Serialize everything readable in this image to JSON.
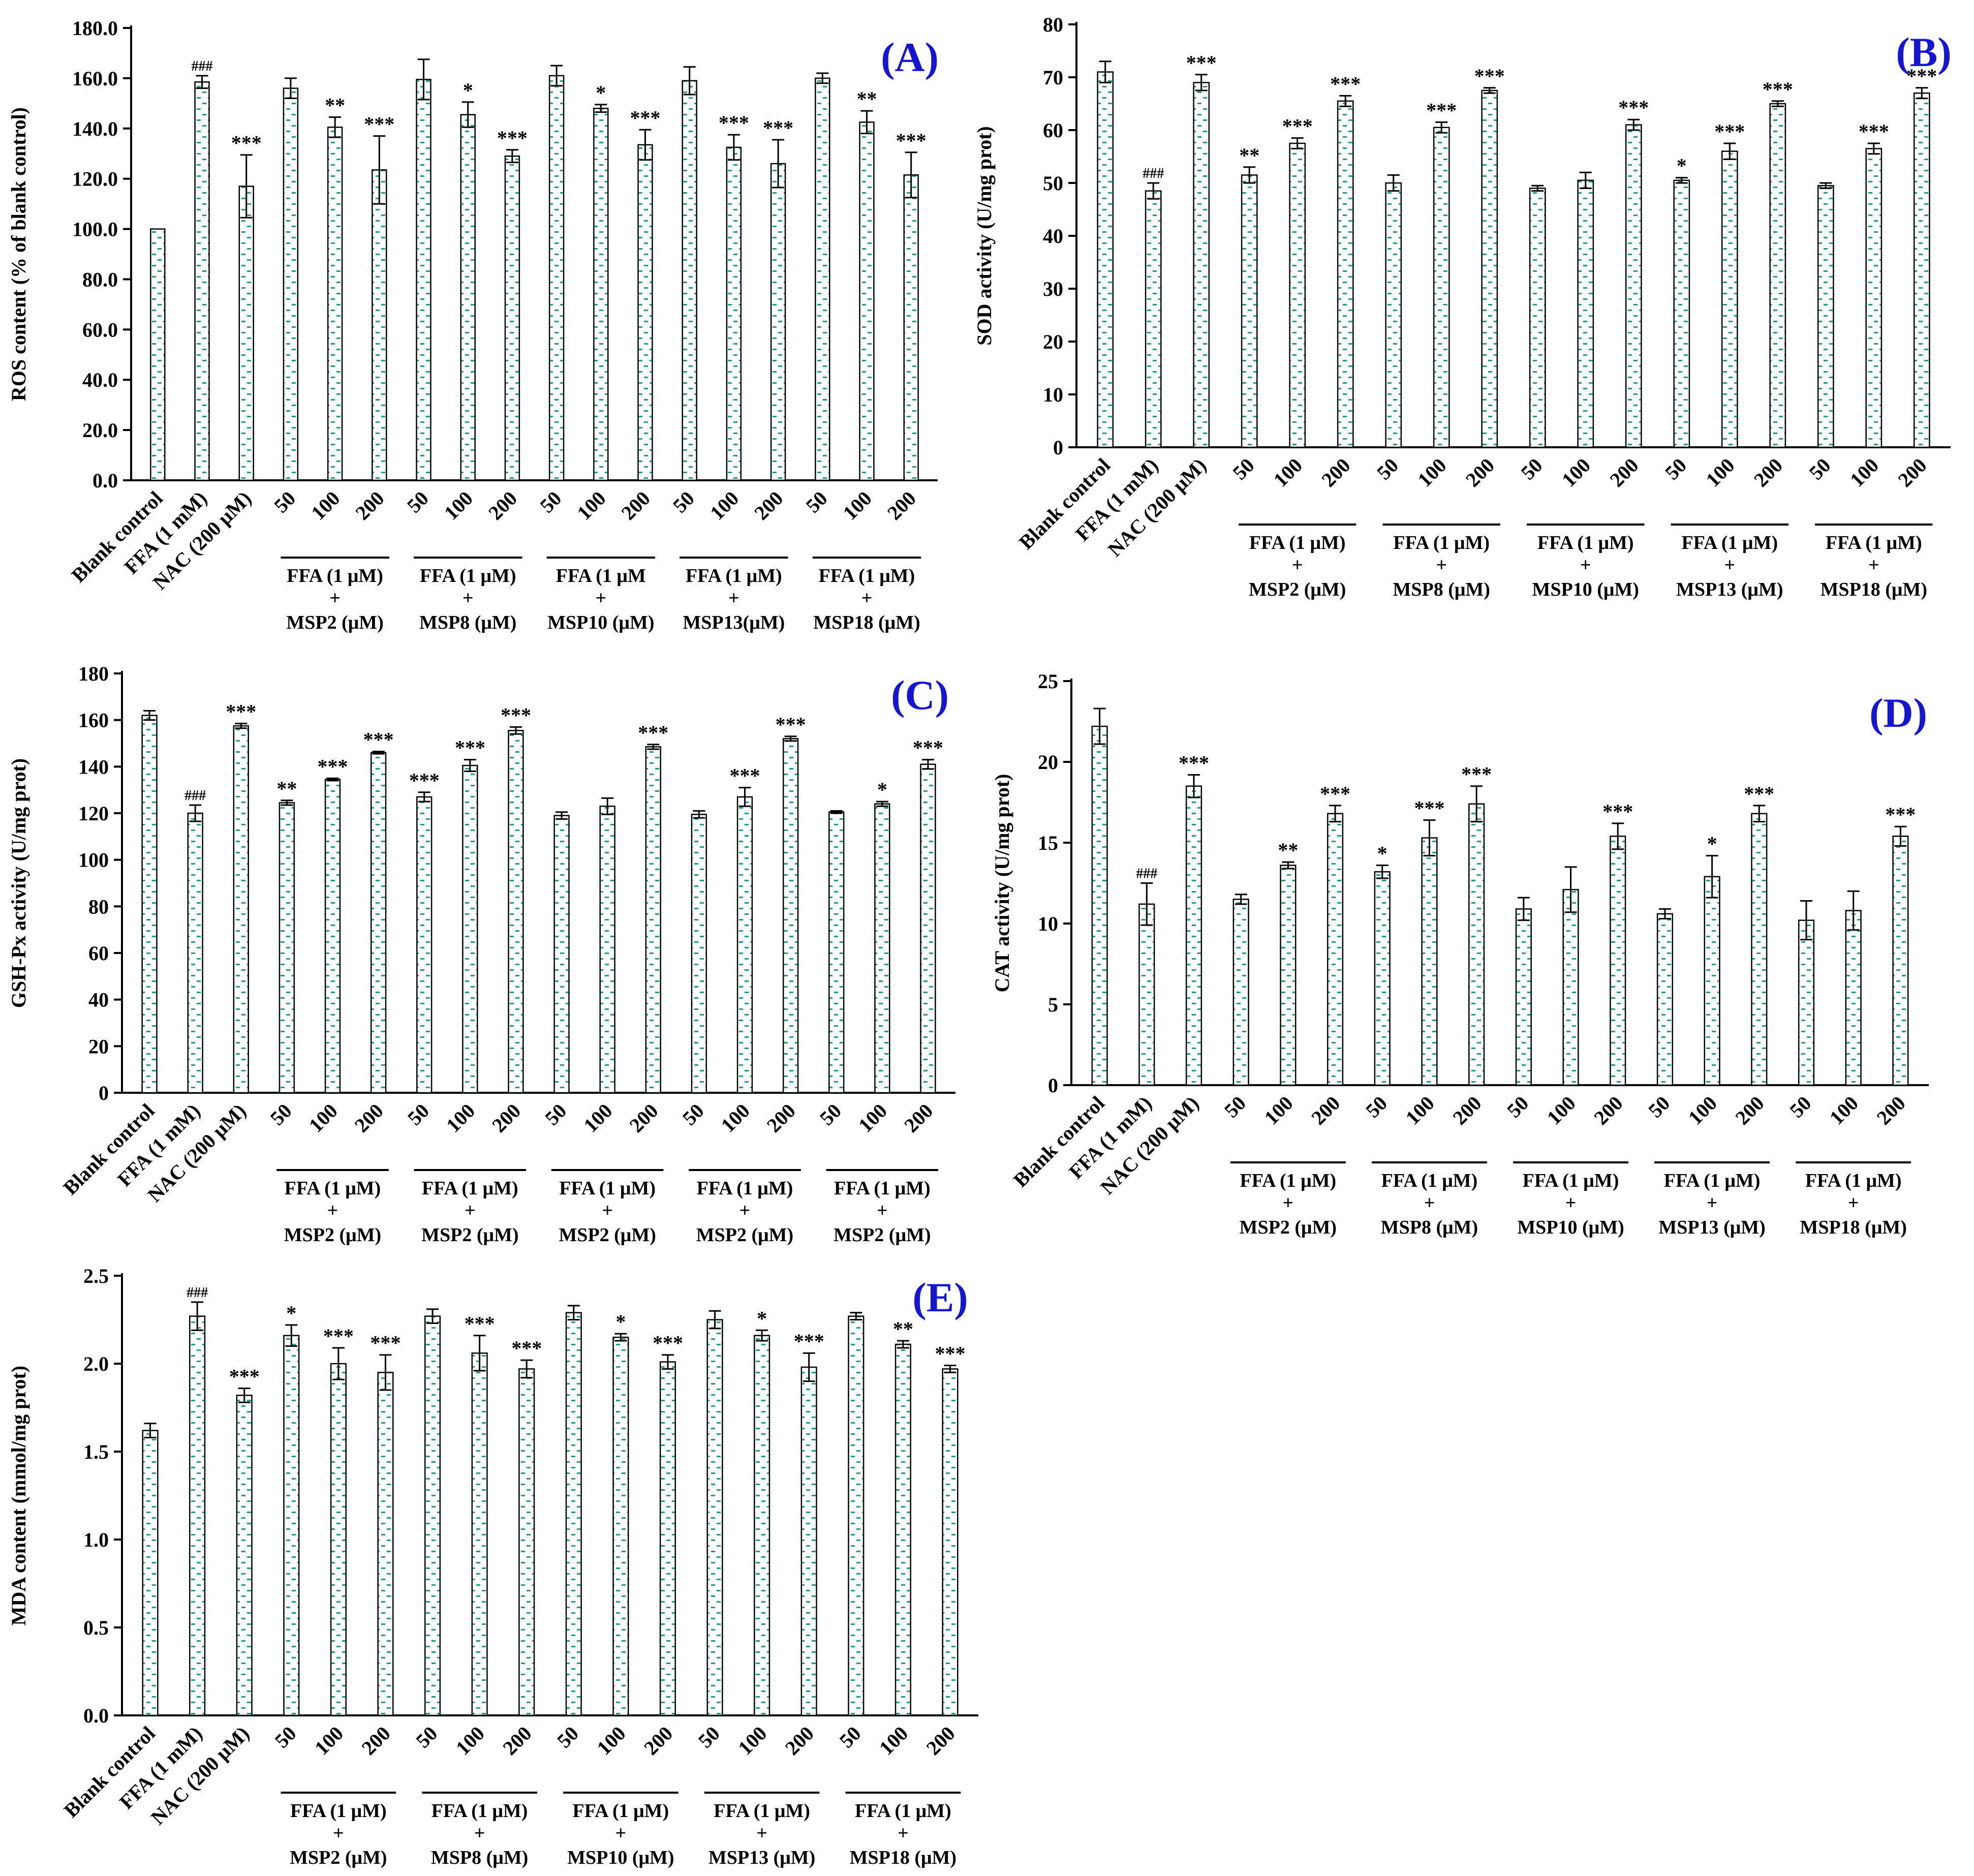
{
  "figure": {
    "colors": {
      "bar_fill": "#ffffff",
      "bar_pattern": "#1e9e78",
      "axis": "#000000",
      "panel_label": "#1515d6"
    }
  },
  "chart_data": [
    {
      "panel_label": "(A)",
      "type": "bar",
      "ylabel": "ROS content (% of blank control)",
      "ylim": [
        0,
        180
      ],
      "yticks": [
        "0.0",
        "20.0",
        "40.0",
        "60.0",
        "80.0",
        "100.0",
        "120.0",
        "140.0",
        "160.0",
        "180.0"
      ],
      "categories": [
        "Blank control",
        "FFA (1 mM)",
        "NAC (200 μM)",
        "50",
        "100",
        "200",
        "50",
        "100",
        "200",
        "50",
        "100",
        "200",
        "50",
        "100",
        "200",
        "50",
        "100",
        "200"
      ],
      "values": [
        100,
        158.5,
        117,
        156,
        140.5,
        123.5,
        159.5,
        145.5,
        129,
        161,
        148,
        133.5,
        159,
        132.5,
        126,
        160,
        142.5,
        121.5
      ],
      "errors": [
        0,
        2.5,
        12.5,
        4,
        4,
        13.5,
        8,
        5,
        2.5,
        4,
        1.5,
        6,
        5.5,
        5,
        9.5,
        2,
        4.5,
        9
      ],
      "significance": [
        "",
        "###",
        "***",
        "",
        "**",
        "***",
        "",
        "*",
        "***",
        "",
        "*",
        "***",
        "",
        "***",
        "***",
        "",
        "**",
        "***"
      ],
      "group_line1": "FFA (1 μM)",
      "group_line2": "+",
      "group_labels": [
        "MSP2 (μM)",
        "MSP8 (μM)",
        "MSP10 (μM)",
        "MSP13(μM)",
        "MSP18 (μM)"
      ],
      "group_line1_list": [
        "FFA (1 μM)",
        "FFA (1 μM)",
        "FFA (1 μM",
        "FFA (1 μM)",
        "FFA (1 μM)"
      ]
    },
    {
      "panel_label": "(B)",
      "type": "bar",
      "ylabel": "SOD activity (U/mg prot)",
      "ylim": [
        0,
        80
      ],
      "yticks": [
        "0",
        "10",
        "20",
        "30",
        "40",
        "50",
        "60",
        "70",
        "80"
      ],
      "categories": [
        "Blank control",
        "FFA (1 mM)",
        "NAC (200 μM)",
        "50",
        "100",
        "200",
        "50",
        "100",
        "200",
        "50",
        "100",
        "200",
        "50",
        "100",
        "200",
        "50",
        "100",
        "200"
      ],
      "values": [
        71,
        48.5,
        69,
        51.5,
        57.5,
        65.5,
        50,
        60.5,
        67.5,
        49,
        50.5,
        61,
        50.5,
        56,
        65,
        49.5,
        56.5,
        67
      ],
      "errors": [
        2,
        1.5,
        1.5,
        1.5,
        1,
        1,
        1.5,
        1,
        0.5,
        0.5,
        1.5,
        1,
        0.5,
        1.5,
        0.5,
        0.5,
        1,
        1
      ],
      "significance": [
        "",
        "###",
        "***",
        "**",
        "***",
        "***",
        "",
        "***",
        "***",
        "",
        "",
        "***",
        "*",
        "***",
        "***",
        "",
        "***",
        "***"
      ],
      "group_line1_list": [
        "FFA (1 μM)",
        "FFA (1 μM)",
        "FFA (1 μM)",
        "FFA (1 μM)",
        "FFA (1 μM)"
      ],
      "group_line2": "+",
      "group_labels": [
        "MSP2 (μM)",
        "MSP8 (μM)",
        "MSP10 (μM)",
        "MSP13 (μM)",
        "MSP18 (μM)"
      ]
    },
    {
      "panel_label": "(C)",
      "type": "bar",
      "ylabel": "GSH-Px activity (U/mg prot)",
      "ylim": [
        0,
        180
      ],
      "yticks": [
        "0",
        "20",
        "40",
        "60",
        "80",
        "100",
        "120",
        "140",
        "160",
        "180"
      ],
      "categories": [
        "Blank control",
        "FFA (1 mM)",
        "NAC (200 μM)",
        "50",
        "100",
        "200",
        "50",
        "100",
        "200",
        "50",
        "100",
        "200",
        "50",
        "100",
        "200",
        "50",
        "100",
        "200"
      ],
      "values": [
        162,
        120,
        157.5,
        124.5,
        134.5,
        146,
        127,
        140.5,
        155.5,
        119,
        123,
        148.5,
        119.5,
        127,
        152,
        120.5,
        124,
        141
      ],
      "errors": [
        2,
        3.5,
        1,
        1,
        0.5,
        0.5,
        2,
        2.5,
        1.5,
        1.5,
        3.5,
        1,
        1.5,
        4,
        1,
        0.5,
        1,
        2
      ],
      "significance": [
        "",
        "###",
        "***",
        "**",
        "***",
        "***",
        "***",
        "***",
        "***",
        "",
        "",
        "***",
        "",
        "***",
        "***",
        "",
        "*",
        "***"
      ],
      "group_line1_list": [
        "FFA (1 μM)",
        "FFA (1 μM)",
        "FFA (1 μM)",
        "FFA (1 μM)",
        "FFA (1 μM)"
      ],
      "group_line2": "+",
      "group_labels": [
        "MSP2 (μM)",
        "MSP2 (μM)",
        "MSP2 (μM)",
        "MSP2 (μM)",
        "MSP2 (μM)"
      ]
    },
    {
      "panel_label": "(D)",
      "type": "bar",
      "ylabel": "CAT activity (U/mg prot)",
      "ylim": [
        0,
        25
      ],
      "yticks": [
        "0",
        "5",
        "10",
        "15",
        "20",
        "25"
      ],
      "categories": [
        "Blank control",
        "FFA (1 mM)",
        "NAC (200 μM)",
        "50",
        "100",
        "200",
        "50",
        "100",
        "200",
        "50",
        "100",
        "200",
        "50",
        "100",
        "200",
        "50",
        "100",
        "200"
      ],
      "values": [
        22.2,
        11.2,
        18.5,
        11.5,
        13.6,
        16.8,
        13.2,
        15.3,
        17.4,
        10.9,
        12.1,
        15.4,
        10.6,
        12.9,
        16.8,
        10.2,
        10.8,
        15.4
      ],
      "errors": [
        1.1,
        1.3,
        0.7,
        0.3,
        0.2,
        0.5,
        0.4,
        1.1,
        1.1,
        0.7,
        1.4,
        0.8,
        0.3,
        1.3,
        0.5,
        1.2,
        1.2,
        0.6
      ],
      "significance": [
        "",
        "###",
        "***",
        "",
        "**",
        "***",
        "*",
        "***",
        "***",
        "",
        "",
        "***",
        "",
        "*",
        "***",
        "",
        "",
        "***"
      ],
      "group_line1_list": [
        "FFA (1 μM)",
        "FFA (1 μM)",
        "FFA (1 μM)",
        "FFA (1 μM)",
        "FFA (1 μM)"
      ],
      "group_line2": "+",
      "group_labels": [
        "MSP2 (μM)",
        "MSP8 (μM)",
        "MSP10 (μM)",
        "MSP13 (μM)",
        "MSP18 (μM)"
      ]
    },
    {
      "panel_label": "(E)",
      "type": "bar",
      "ylabel": "MDA content (mmol/mg prot)",
      "ylim": [
        0,
        2.5
      ],
      "yticks": [
        "0.0",
        "0.5",
        "1.0",
        "1.5",
        "2.0",
        "2.5"
      ],
      "categories": [
        "Blank control",
        "FFA (1 mM)",
        "NAC (200 μM)",
        "50",
        "100",
        "200",
        "50",
        "100",
        "200",
        "50",
        "100",
        "200",
        "50",
        "100",
        "200",
        "50",
        "100",
        "200"
      ],
      "values": [
        1.62,
        2.27,
        1.82,
        2.16,
        2.0,
        1.95,
        2.27,
        2.06,
        1.97,
        2.29,
        2.15,
        2.01,
        2.25,
        2.16,
        1.98,
        2.27,
        2.11,
        1.97
      ],
      "errors": [
        0.04,
        0.08,
        0.04,
        0.06,
        0.09,
        0.1,
        0.04,
        0.1,
        0.05,
        0.04,
        0.02,
        0.04,
        0.05,
        0.03,
        0.08,
        0.02,
        0.02,
        0.02
      ],
      "significance": [
        "",
        "###",
        "***",
        "*",
        "***",
        "***",
        "",
        "***",
        "***",
        "",
        "*",
        "***",
        "",
        "*",
        "***",
        "",
        "**",
        "***"
      ],
      "group_line1_list": [
        "FFA (1 μM)",
        "FFA (1 μM)",
        "FFA (1 μM)",
        "FFA (1 μM)",
        "FFA (1 μM)"
      ],
      "group_line2": "+",
      "group_labels": [
        "MSP2 (μM)",
        "MSP8 (μM)",
        "MSP10 (μM)",
        "MSP13 (μM)",
        "MSP18 (μM)"
      ]
    }
  ]
}
